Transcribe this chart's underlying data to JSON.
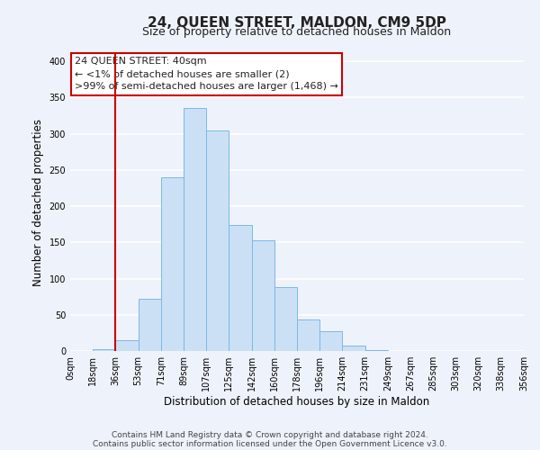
{
  "title": "24, QUEEN STREET, MALDON, CM9 5DP",
  "subtitle": "Size of property relative to detached houses in Maldon",
  "xlabel": "Distribution of detached houses by size in Maldon",
  "ylabel": "Number of detached properties",
  "bin_labels": [
    "0sqm",
    "18sqm",
    "36sqm",
    "53sqm",
    "71sqm",
    "89sqm",
    "107sqm",
    "125sqm",
    "142sqm",
    "160sqm",
    "178sqm",
    "196sqm",
    "214sqm",
    "231sqm",
    "249sqm",
    "267sqm",
    "285sqm",
    "303sqm",
    "320sqm",
    "338sqm",
    "356sqm"
  ],
  "bar_heights": [
    0,
    2,
    15,
    72,
    240,
    335,
    305,
    174,
    153,
    88,
    44,
    27,
    8,
    1,
    0,
    0,
    0,
    0,
    0,
    0
  ],
  "bar_color": "#cce0f5",
  "bar_edge_color": "#7ab8e8",
  "red_line_bin": 2,
  "annotation_title": "24 QUEEN STREET: 40sqm",
  "annotation_line1": "← <1% of detached houses are smaller (2)",
  "annotation_line2": ">99% of semi-detached houses are larger (1,468) →",
  "annotation_box_color": "#ffffff",
  "annotation_box_edge": "#cc0000",
  "red_line_color": "#cc0000",
  "ylim": [
    0,
    410
  ],
  "yticks": [
    0,
    50,
    100,
    150,
    200,
    250,
    300,
    350,
    400
  ],
  "footer1": "Contains HM Land Registry data © Crown copyright and database right 2024.",
  "footer2": "Contains public sector information licensed under the Open Government Licence v3.0.",
  "bg_color": "#eef2fa",
  "grid_color": "#ffffff",
  "title_fontsize": 11,
  "subtitle_fontsize": 9,
  "axis_label_fontsize": 8.5,
  "tick_fontsize": 7,
  "annotation_fontsize": 8,
  "footer_fontsize": 6.5
}
